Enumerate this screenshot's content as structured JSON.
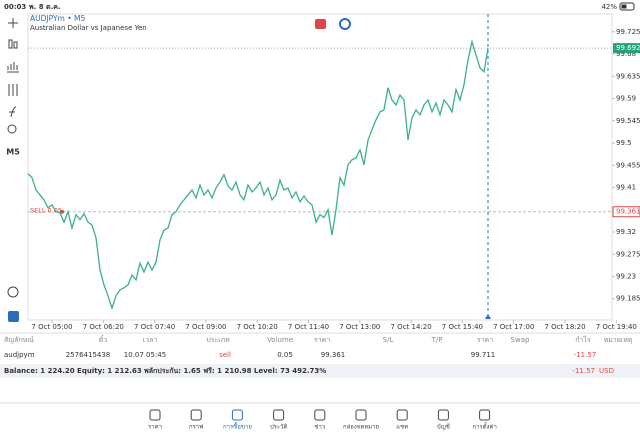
{
  "status_bar": {
    "time": "00:03",
    "date": "พ. 8 ต.ค.",
    "battery": "42%"
  },
  "toolbar": {
    "timeframe": "M5"
  },
  "chart_data": {
    "type": "line",
    "title": "AUDJPYm • M5",
    "subtitle": "Australian Dollar vs Japanese Yen",
    "color": "#3cb08a",
    "values": [
      99.438,
      99.43,
      99.405,
      99.395,
      99.385,
      99.369,
      99.375,
      99.361,
      99.359,
      99.34,
      99.361,
      99.328,
      99.355,
      99.345,
      99.357,
      99.34,
      99.334,
      99.308,
      99.243,
      99.213,
      99.191,
      99.166,
      99.191,
      99.203,
      99.207,
      99.213,
      99.233,
      99.223,
      99.257,
      99.239,
      99.259,
      99.243,
      99.259,
      99.304,
      99.324,
      99.328,
      99.355,
      99.361,
      99.375,
      99.385,
      99.395,
      99.405,
      99.389,
      99.415,
      99.395,
      99.405,
      99.389,
      99.409,
      99.421,
      99.436,
      99.413,
      99.405,
      99.421,
      99.395,
      99.385,
      99.415,
      99.401,
      99.409,
      99.421,
      99.395,
      99.409,
      99.385,
      99.395,
      99.425,
      99.405,
      99.409,
      99.389,
      99.401,
      99.381,
      99.393,
      99.381,
      99.375,
      99.34,
      99.355,
      99.349,
      99.365,
      99.314,
      99.365,
      99.43,
      99.415,
      99.456,
      99.466,
      99.47,
      99.486,
      99.456,
      99.506,
      99.527,
      99.547,
      99.563,
      99.567,
      99.612,
      99.587,
      99.577,
      99.597,
      99.587,
      99.506,
      99.551,
      99.567,
      99.557,
      99.577,
      99.587,
      99.563,
      99.581,
      99.557,
      99.587,
      99.577,
      99.563,
      99.608,
      99.587,
      99.618,
      99.668,
      99.705,
      99.678,
      99.652,
      99.644,
      99.692
    ],
    "ylim": [
      99.142,
      99.761
    ],
    "yticks": [
      99.725,
      99.68,
      99.635,
      99.59,
      99.545,
      99.5,
      99.455,
      99.41,
      99.32,
      99.275,
      99.23,
      99.185
    ],
    "x_labels": [
      "7 Oct 05:00",
      "7 Oct 06:20",
      "7 Oct 07:40",
      "7 Oct 09:00",
      "7 Oct 10:20",
      "7 Oct 11:40",
      "7 Oct 13:00",
      "7 Oct 14:20",
      "7 Oct 15:40",
      "7 Oct 17:00",
      "7 Oct 18:20",
      "7 Oct 19:40"
    ],
    "current_price": 99.692,
    "current_color": "#26a17b",
    "sell_price": 99.361,
    "sell_label": "SELL 0.05",
    "sell_color": "#e04646",
    "grid": false
  },
  "trades": {
    "columns": [
      "สัญลักษณ์",
      "ตั๋ว",
      "เวลา",
      "ประเภท",
      "Volume",
      "ราคา",
      "S/L",
      "T/P",
      "ราคา",
      "Swap",
      "กำไร",
      "หมายเหตุ"
    ],
    "rows": [
      [
        "audjpym",
        "2576415438",
        "10.07 05:45",
        "sell",
        "0.05",
        "99.361",
        null,
        null,
        "99.711",
        null,
        "-11.57",
        null
      ]
    ]
  },
  "summary": {
    "text": "Balance: 1 224.20 Equity: 1 212.63 พลักประกัน: 1.65 ฟรี: 1 210.98 Level: 73 492.73%",
    "profit": "-11.57",
    "currency": "USD"
  },
  "nav": [
    "ราคา",
    "กราฟ",
    "การซื้อขาย",
    "ประวัติ",
    "ข่าว",
    "กล่องจดหมาย",
    "แชท",
    "บัญชี",
    "การตั้งค่า"
  ],
  "nav_active": 2
}
